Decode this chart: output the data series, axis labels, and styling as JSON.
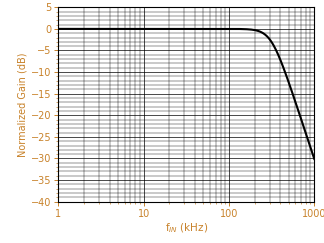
{
  "xlabel": "f$_{IN}$ (kHz)",
  "ylabel": "Normalized Gain (dB)",
  "xlim": [
    1,
    1000
  ],
  "ylim": [
    -40,
    5
  ],
  "yticks": [
    5,
    0,
    -5,
    -10,
    -15,
    -20,
    -25,
    -30,
    -35,
    -40
  ],
  "label_color": "#C8822A",
  "tick_color": "#C8822A",
  "line_color": "#000000",
  "line_width": 1.5,
  "background_color": "#ffffff",
  "figsize": [
    3.24,
    2.43
  ],
  "dpi": 100,
  "f3db_khz": 250,
  "pole_order": 4
}
